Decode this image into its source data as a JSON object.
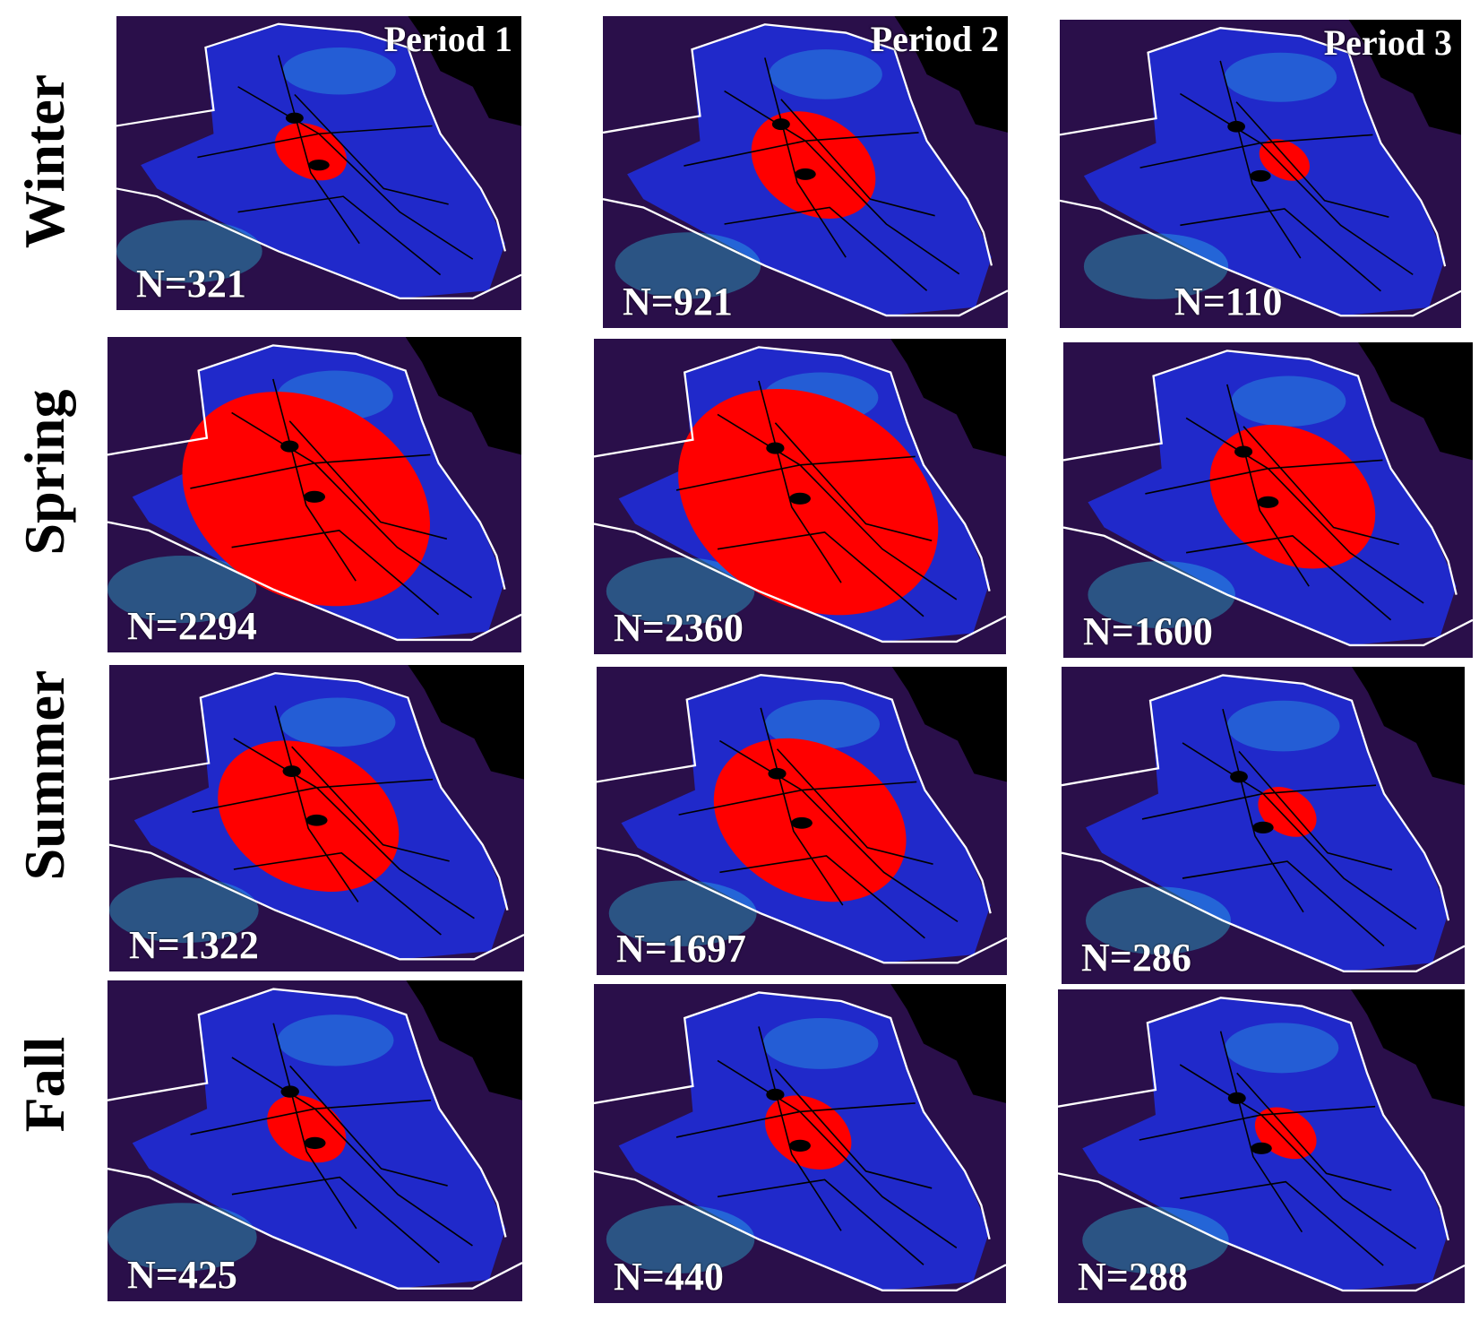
{
  "rows": [
    {
      "label": "Winter"
    },
    {
      "label": "Spring"
    },
    {
      "label": "Summer"
    },
    {
      "label": "Fall"
    }
  ],
  "columns": [
    {
      "title": "Period 1"
    },
    {
      "title": "Period 2"
    },
    {
      "title": "Period 3"
    }
  ],
  "panels": [
    [
      {
        "n": "N=321",
        "red_level": 0.1
      },
      {
        "n": "N=921",
        "red_level": 0.3
      },
      {
        "n": "N=110",
        "red_level": 0.02
      }
    ],
    [
      {
        "n": "N=2294",
        "red_level": 0.75
      },
      {
        "n": "N=2360",
        "red_level": 0.8
      },
      {
        "n": "N=1600",
        "red_level": 0.45
      }
    ],
    [
      {
        "n": "N=1322",
        "red_level": 0.5
      },
      {
        "n": "N=1697",
        "red_level": 0.55
      },
      {
        "n": "N=286",
        "red_level": 0.05
      }
    ],
    [
      {
        "n": "N=425",
        "red_level": 0.12
      },
      {
        "n": "N=440",
        "red_level": 0.15
      },
      {
        "n": "N=288",
        "red_level": 0.06
      }
    ]
  ],
  "colors": {
    "background_dark": "#2a0f4a",
    "land_blue": "#1f2ee0",
    "haze_cyan": "#2fd8f0",
    "hotspot_red": "#ff0000",
    "no_data": "#000000",
    "border_white": "#ffffff",
    "roads": "#000000"
  }
}
